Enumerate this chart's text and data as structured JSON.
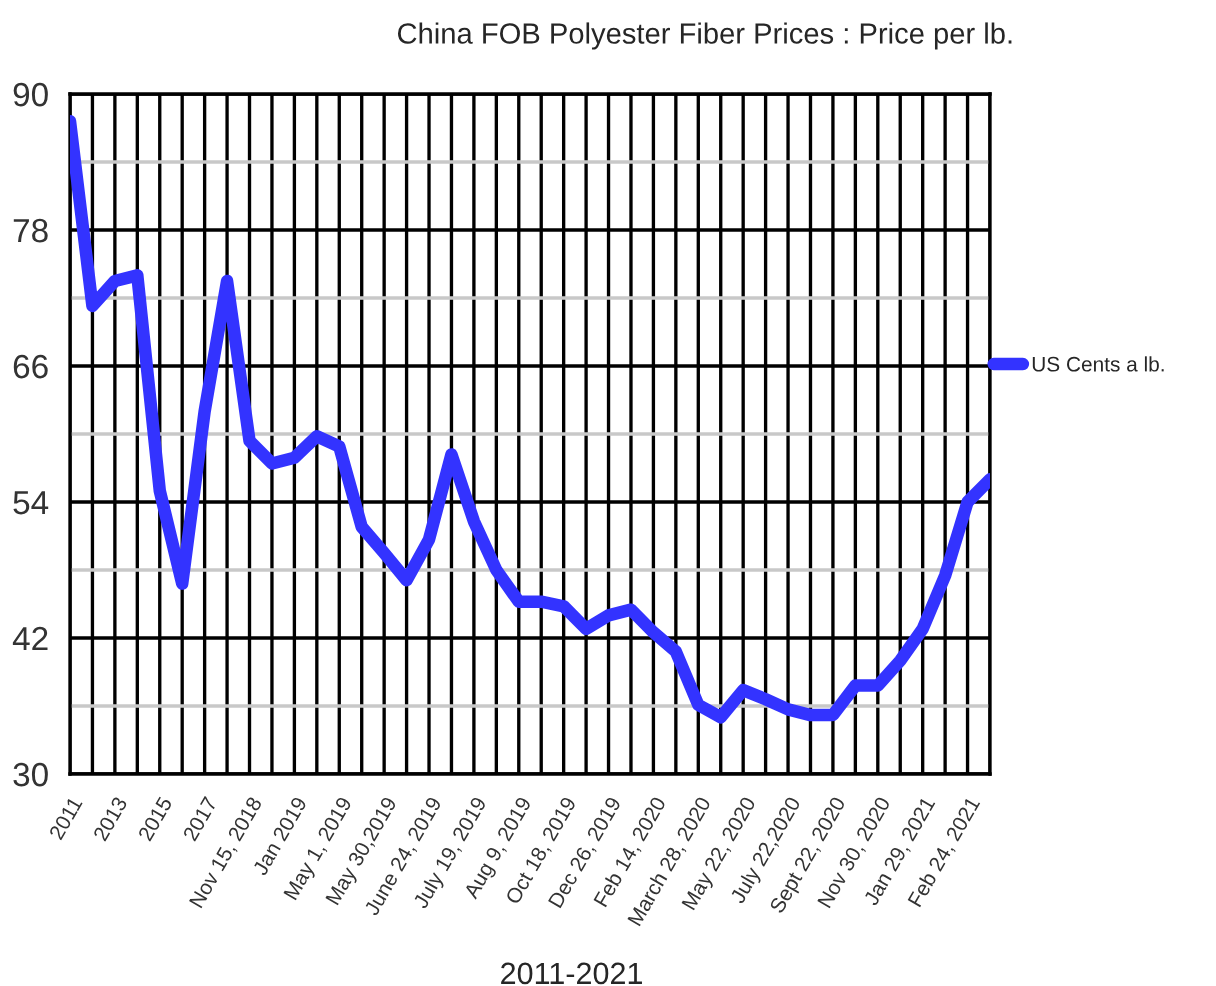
{
  "chart_data": {
    "type": "line",
    "title": "China FOB Polyester Fiber Prices : Price per lb.",
    "categories": [
      "2011",
      null,
      "2013",
      null,
      "2015",
      null,
      "2017",
      null,
      "Nov 15, 2018",
      null,
      "Jan 2019",
      null,
      "May 1, 2019",
      null,
      "May 30,2019",
      null,
      "June 24, 2019",
      null,
      "July 19, 2019",
      null,
      "Aug 9, 2019",
      null,
      "Oct 18, 2019",
      null,
      "Dec 26, 2019",
      null,
      "Feb 14, 2020",
      null,
      "March 28, 2020",
      null,
      "May 22, 2020",
      null,
      "July 22,2020",
      null,
      "Sept 22, 2020",
      null,
      "Nov 30, 2020",
      null,
      "Jan 29, 2021",
      null,
      "Feb 24, 2021",
      null
    ],
    "series": [
      {
        "name": "US Cents a lb.",
        "color": "#3333ff",
        "values": [
          87.6,
          71.3,
          73.5,
          74,
          55,
          46.8,
          62,
          73.5,
          59.4,
          57.4,
          57.9,
          59.8,
          58.9,
          51.8,
          49.5,
          47.1,
          50.7,
          58.2,
          52.3,
          48,
          45.2,
          45.2,
          44.8,
          42.8,
          44,
          44.5,
          42.5,
          40.8,
          36.1,
          35,
          37.4,
          36.6,
          35.7,
          35.2,
          35.2,
          37.8,
          37.8,
          40,
          42.8,
          47.5,
          54,
          56
        ]
      }
    ],
    "ylim": [
      30,
      90
    ],
    "yticks": [
      30,
      {
        "value": 36,
        "label": null
      },
      42,
      {
        "value": 48,
        "label": null
      },
      54,
      {
        "value": 60,
        "label": null
      },
      66,
      {
        "value": 72,
        "label": null
      },
      78,
      {
        "value": 84,
        "label": null
      },
      90
    ],
    "grid": true,
    "legend": "right",
    "marker": "none",
    "line_style": "solid",
    "annotations": [
      "2011-2021"
    ]
  }
}
